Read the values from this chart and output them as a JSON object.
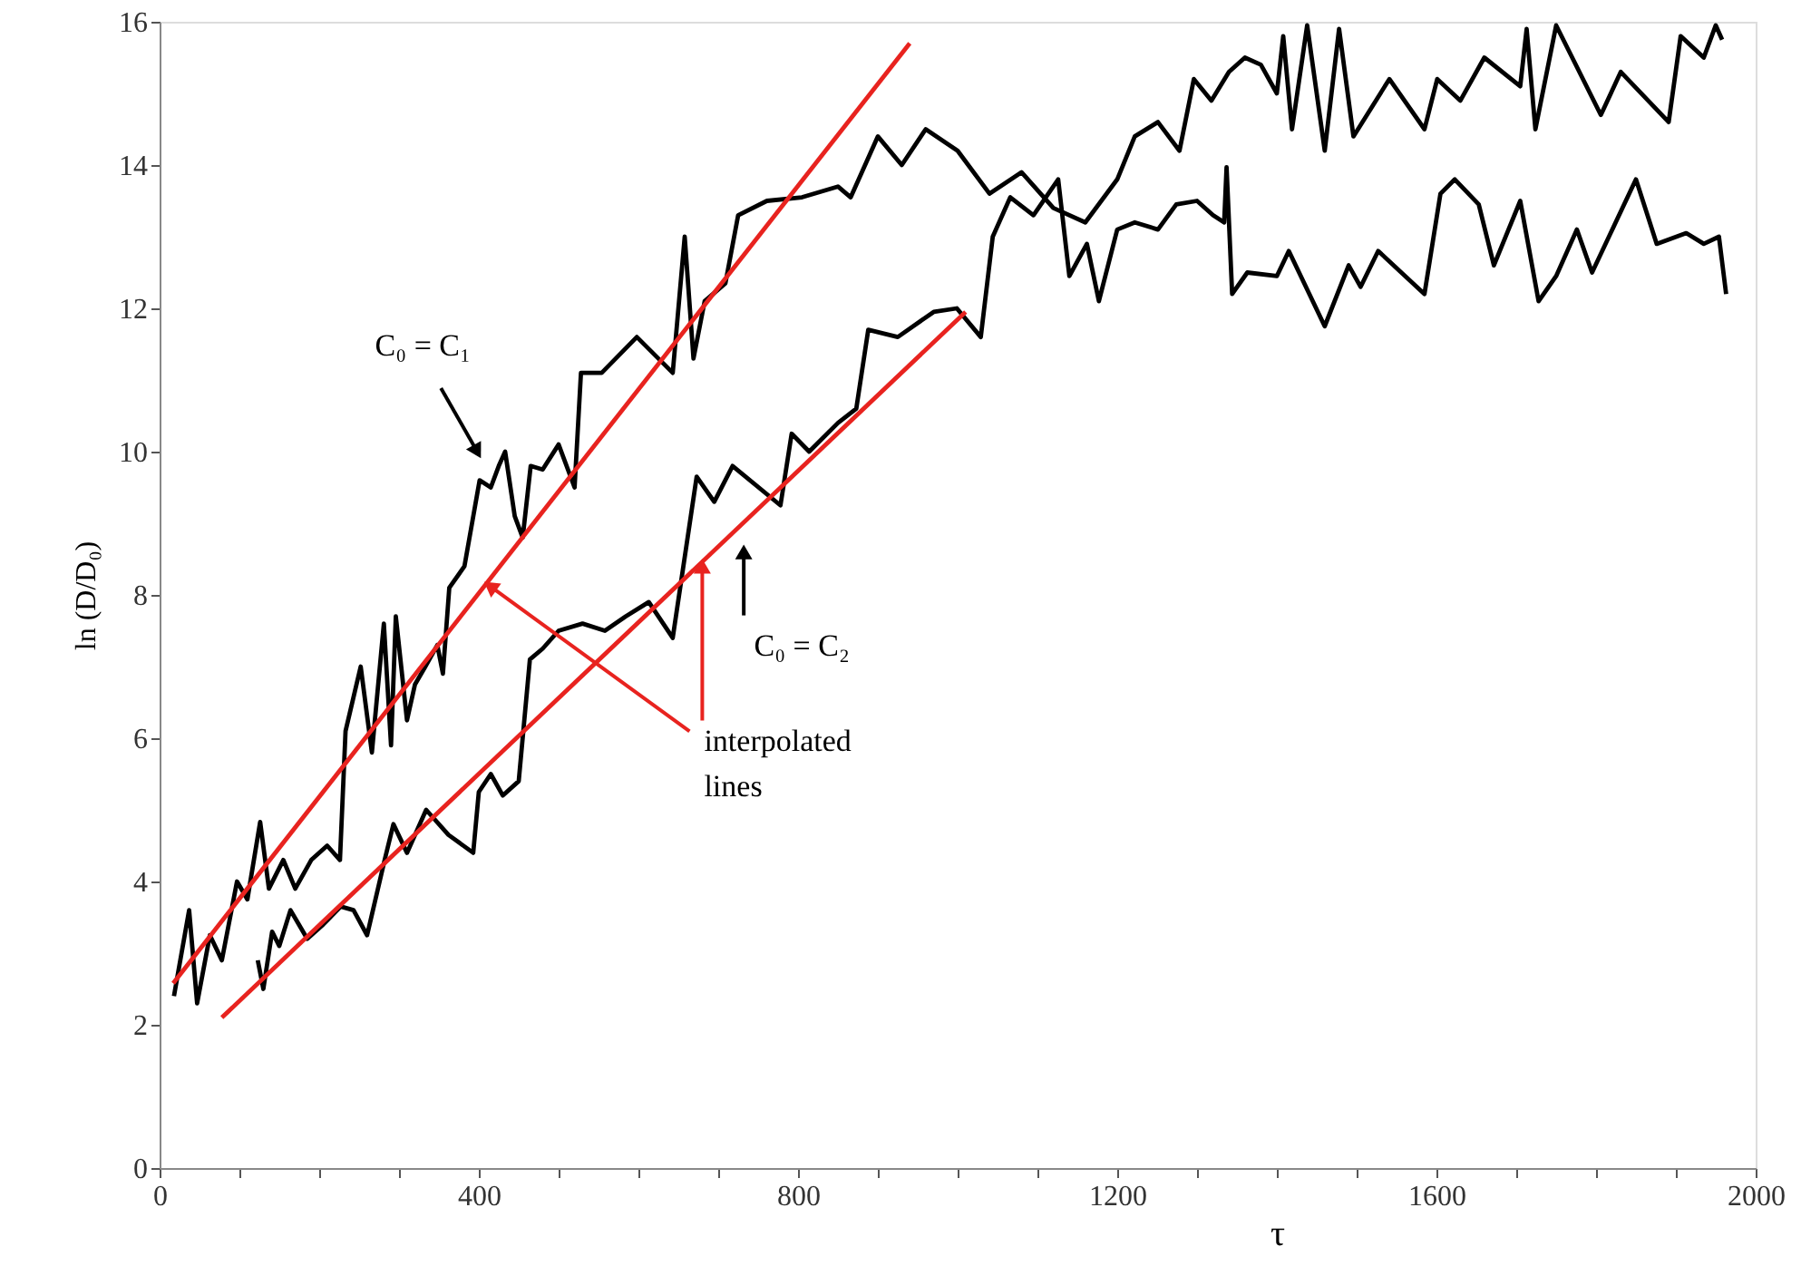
{
  "chart_data": {
    "type": "line",
    "xlabel": "τ",
    "ylabel": "ln (D/D₀)",
    "xlim": [
      0,
      2000
    ],
    "ylim": [
      0,
      16
    ],
    "xticks": [
      0,
      {
        "value": 100,
        "label": null
      },
      {
        "value": 200,
        "label": null
      },
      {
        "value": 300,
        "label": null
      },
      400,
      {
        "value": 500,
        "label": null
      },
      {
        "value": 600,
        "label": null
      },
      {
        "value": 700,
        "label": null
      },
      800,
      {
        "value": 900,
        "label": null
      },
      {
        "value": 1000,
        "label": null
      },
      {
        "value": 1100,
        "label": null
      },
      1200,
      {
        "value": 1300,
        "label": null
      },
      {
        "value": 1400,
        "label": null
      },
      {
        "value": 1500,
        "label": null
      },
      1600,
      {
        "value": 1700,
        "label": null
      },
      {
        "value": 1800,
        "label": null
      },
      {
        "value": 1900,
        "label": null
      },
      2000
    ],
    "yticks": [
      0,
      2,
      4,
      6,
      8,
      10,
      12,
      14,
      16
    ],
    "grid": false,
    "marker": "none",
    "line_style": "solid",
    "series": [
      {
        "color": "#000000",
        "x": [
          18,
          37,
          47,
          63,
          78,
          97,
          110,
          126,
          137,
          155,
          170,
          190,
          210,
          226,
          233,
          252,
          266,
          281,
          290,
          296,
          310,
          320,
          333,
          348,
          355,
          363,
          382,
          401,
          415,
          425,
          433,
          445,
          455,
          465,
          480,
          500,
          520,
          528,
          554,
          598,
          643,
          658,
          669,
          683,
          709,
          725,
          761,
          805,
          850,
          866,
          900,
          930,
          960,
          1000,
          1040,
          1080,
          1120,
          1160,
          1200,
          1222,
          1251,
          1278,
          1296,
          1318,
          1340,
          1360,
          1380,
          1400,
          1408,
          1419,
          1438,
          1460,
          1478,
          1496,
          1541,
          1585,
          1601,
          1630,
          1660,
          1705,
          1713,
          1724,
          1750,
          1806,
          1831,
          1891,
          1906,
          1935,
          1950,
          1958
        ],
        "values": [
          2.4,
          3.6,
          2.3,
          3.25,
          2.9,
          4.0,
          3.75,
          4.83,
          3.9,
          4.3,
          3.9,
          4.3,
          4.5,
          4.3,
          6.1,
          7.0,
          5.8,
          7.6,
          5.9,
          7.7,
          6.25,
          6.75,
          7.0,
          7.3,
          6.9,
          8.1,
          8.4,
          9.6,
          9.5,
          9.8,
          10.0,
          9.1,
          8.8,
          9.8,
          9.75,
          10.1,
          9.5,
          11.1,
          11.1,
          11.6,
          11.1,
          13.0,
          11.3,
          12.1,
          12.35,
          13.3,
          13.5,
          13.55,
          13.7,
          13.55,
          14.4,
          14.0,
          14.5,
          14.2,
          13.6,
          13.9,
          13.4,
          13.2,
          13.8,
          14.4,
          14.6,
          14.2,
          15.2,
          14.9,
          15.3,
          15.5,
          15.4,
          15.0,
          15.8,
          14.5,
          15.95,
          14.2,
          15.9,
          14.4,
          15.2,
          14.5,
          15.2,
          14.9,
          15.5,
          15.1,
          15.9,
          14.5,
          15.95,
          14.7,
          15.3,
          14.6,
          15.8,
          15.5,
          15.95,
          15.75
        ]
      },
      {
        "color": "#000000",
        "x": [
          123,
          130,
          141,
          150,
          164,
          185,
          205,
          227,
          243,
          260,
          282,
          293,
          310,
          334,
          362,
          393,
          400,
          415,
          430,
          450,
          464,
          480,
          500,
          530,
          558,
          584,
          613,
          643,
          673,
          695,
          718,
          778,
          792,
          814,
          850,
          873,
          888,
          925,
          970,
          999,
          1029,
          1044,
          1066,
          1095,
          1126,
          1140,
          1162,
          1177,
          1200,
          1222,
          1251,
          1274,
          1300,
          1320,
          1334,
          1337,
          1344,
          1363,
          1400,
          1415,
          1460,
          1490,
          1505,
          1527,
          1585,
          1605,
          1623,
          1653,
          1672,
          1705,
          1728,
          1750,
          1776,
          1795,
          1850,
          1876,
          1913,
          1935,
          1954,
          1963
        ],
        "values": [
          2.9,
          2.5,
          3.3,
          3.1,
          3.6,
          3.2,
          3.4,
          3.65,
          3.6,
          3.25,
          4.3,
          4.8,
          4.4,
          5.0,
          4.65,
          4.4,
          5.25,
          5.5,
          5.2,
          5.4,
          7.1,
          7.25,
          7.5,
          7.6,
          7.5,
          7.7,
          7.9,
          7.4,
          9.65,
          9.3,
          9.8,
          9.25,
          10.25,
          10.0,
          10.4,
          10.6,
          11.7,
          11.6,
          11.95,
          12.0,
          11.6,
          13.0,
          13.55,
          13.3,
          13.8,
          12.45,
          12.9,
          12.1,
          13.1,
          13.2,
          13.1,
          13.45,
          13.5,
          13.3,
          13.2,
          13.97,
          12.2,
          12.5,
          12.45,
          12.8,
          11.75,
          12.6,
          12.3,
          12.8,
          12.2,
          13.6,
          13.8,
          13.45,
          12.6,
          13.5,
          12.1,
          12.45,
          13.1,
          12.5,
          13.8,
          12.9,
          13.05,
          12.9,
          13.0,
          12.2
        ]
      },
      {
        "color": "#e8231f",
        "x": [
          17,
          940
        ],
        "values": [
          2.58,
          15.7
        ]
      },
      {
        "color": "#e8231f",
        "x": [
          78,
          1010
        ],
        "values": [
          2.1,
          11.95
        ]
      }
    ],
    "annotations": [
      "C₀ = C₁",
      "C₀ = C₂",
      {
        "text": "interpolated lines",
        "x": 680,
        "y": 8.4
      }
    ]
  }
}
